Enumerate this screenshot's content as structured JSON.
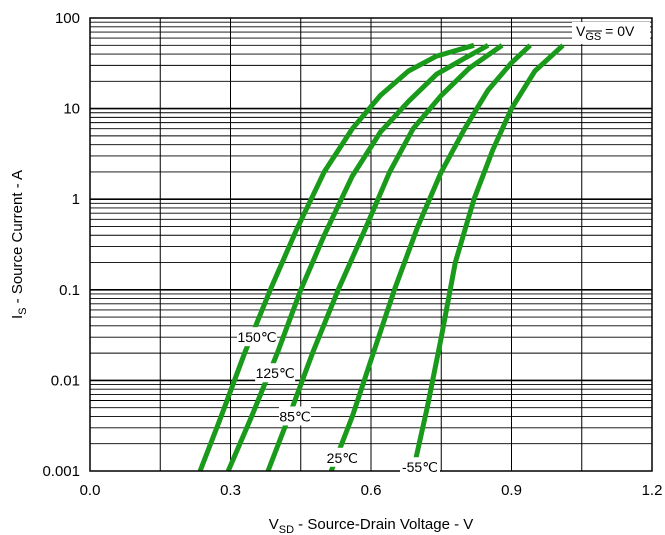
{
  "chart_data": {
    "type": "line",
    "x_axis": {
      "label_main": "V",
      "label_sub": "SD",
      "label_rest": " - Source-Drain Voltage - V",
      "range": [
        0,
        1.2
      ],
      "ticks": [
        0,
        0.3,
        0.6,
        0.9,
        1.2
      ],
      "tick_labels": [
        "0.0",
        "0.3",
        "0.6",
        "0.9",
        "1.2"
      ],
      "scale": "linear",
      "minor_step": 0.15
    },
    "y_axis": {
      "label_main": "I",
      "label_sub": "S",
      "label_rest": " - Source Current - A",
      "range": [
        0.001,
        100
      ],
      "ticks": [
        0.001,
        0.01,
        0.1,
        1,
        10,
        100
      ],
      "tick_labels": [
        "0.001",
        "0.01",
        "0.1",
        "1",
        "10",
        "100"
      ],
      "scale": "log"
    },
    "grid": true,
    "condition": {
      "main": "V",
      "sub": "GS",
      "rest": " = 0V"
    },
    "line_color": "#1a9a1a",
    "series": [
      {
        "name": "150℃",
        "points": [
          [
            0.235,
            0.001
          ],
          [
            0.28,
            0.004
          ],
          [
            0.33,
            0.02
          ],
          [
            0.385,
            0.1
          ],
          [
            0.44,
            0.45
          ],
          [
            0.5,
            2
          ],
          [
            0.56,
            6
          ],
          [
            0.62,
            14
          ],
          [
            0.68,
            26
          ],
          [
            0.74,
            38
          ],
          [
            0.82,
            50
          ]
        ]
      },
      {
        "name": "125℃",
        "points": [
          [
            0.295,
            0.001
          ],
          [
            0.345,
            0.004
          ],
          [
            0.4,
            0.02
          ],
          [
            0.45,
            0.1
          ],
          [
            0.5,
            0.4
          ],
          [
            0.56,
            1.8
          ],
          [
            0.62,
            5.5
          ],
          [
            0.68,
            12
          ],
          [
            0.74,
            24
          ],
          [
            0.8,
            36
          ],
          [
            0.85,
            50
          ]
        ]
      },
      {
        "name": "85℃",
        "points": [
          [
            0.38,
            0.001
          ],
          [
            0.425,
            0.004
          ],
          [
            0.475,
            0.02
          ],
          [
            0.53,
            0.1
          ],
          [
            0.59,
            0.5
          ],
          [
            0.64,
            2
          ],
          [
            0.69,
            6
          ],
          [
            0.75,
            14
          ],
          [
            0.81,
            28
          ],
          [
            0.88,
            50
          ]
        ]
      },
      {
        "name": "25℃",
        "points": [
          [
            0.515,
            0.001
          ],
          [
            0.56,
            0.004
          ],
          [
            0.605,
            0.02
          ],
          [
            0.65,
            0.1
          ],
          [
            0.7,
            0.5
          ],
          [
            0.75,
            2
          ],
          [
            0.8,
            6
          ],
          [
            0.85,
            16
          ],
          [
            0.9,
            32
          ],
          [
            0.94,
            50
          ]
        ]
      },
      {
        "name": "-55℃",
        "points": [
          [
            0.69,
            0.001
          ],
          [
            0.72,
            0.005
          ],
          [
            0.75,
            0.03
          ],
          [
            0.78,
            0.2
          ],
          [
            0.82,
            1
          ],
          [
            0.86,
            3.5
          ],
          [
            0.9,
            10
          ],
          [
            0.95,
            26
          ],
          [
            1.01,
            50
          ]
        ]
      }
    ]
  }
}
